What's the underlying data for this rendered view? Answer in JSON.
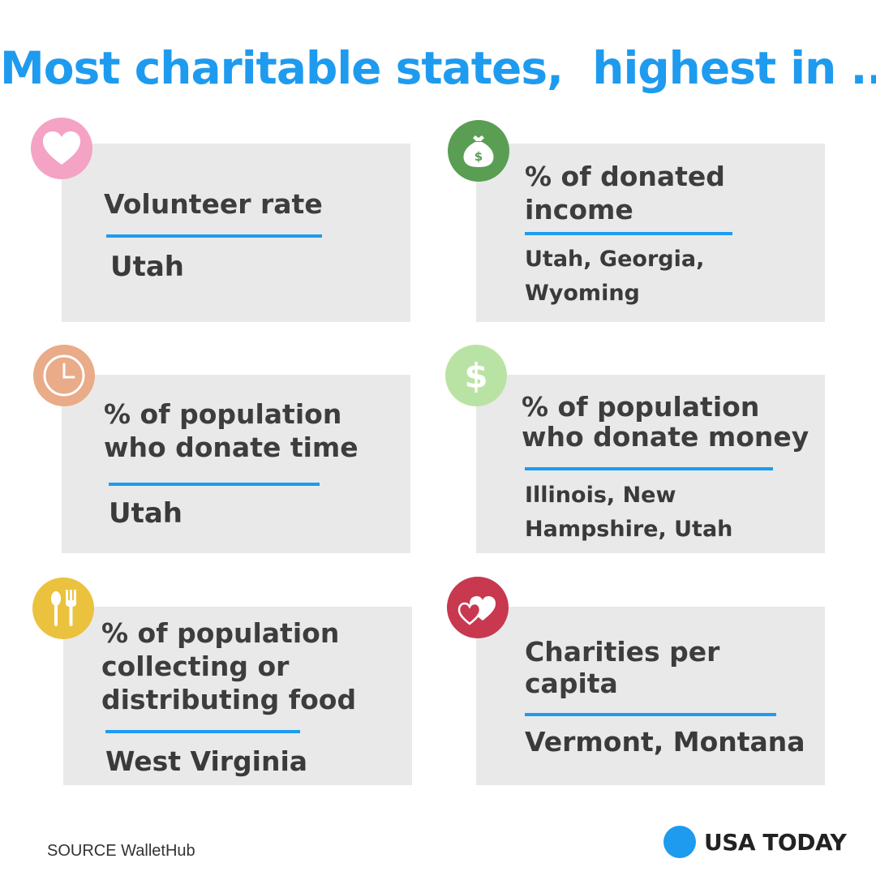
{
  "header": {
    "title": "Most charitable states,  highest in ..."
  },
  "cards": [
    {
      "label": "Volunteer rate",
      "answer": "Utah",
      "icon": "heart-icon",
      "icon_color": "#f4a3c4"
    },
    {
      "label": "% of donated income",
      "answer": "Utah, Georgia, Wyoming",
      "icon": "money-bag-icon",
      "icon_color": "#5a9e54"
    },
    {
      "label": "% of population who donate time",
      "answer": "Utah",
      "icon": "clock-icon",
      "icon_color": "#e9ab88"
    },
    {
      "label": "% of population who donate money",
      "answer": "Illinois, New Hampshire, Utah",
      "icon": "dollar-icon",
      "icon_color": "#b9e3a4"
    },
    {
      "label": "% of population collecting or distributing food",
      "answer": "West Virginia",
      "icon": "fork-spoon-icon",
      "icon_color": "#ebc23e"
    },
    {
      "label": "Charities per capita",
      "answer": "Vermont, Montana",
      "icon": "two-hearts-icon",
      "icon_color": "#c8384f"
    }
  ],
  "footer": {
    "source": "SOURCE WalletHub",
    "brand": "USA TODAY"
  },
  "colors": {
    "accent": "#1e9bef",
    "card_bg": "#e9e9e9",
    "text": "#3d3d3d"
  }
}
